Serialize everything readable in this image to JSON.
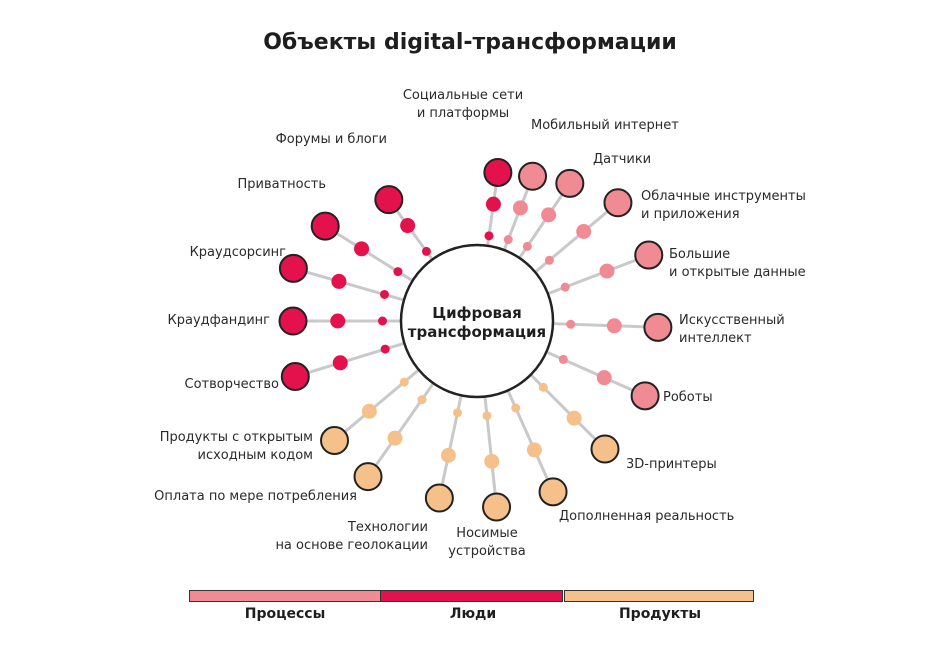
{
  "title": "Объекты digital-трансформации",
  "center_label": [
    "Цифровая",
    "трансформация"
  ],
  "colors": {
    "processes": "#f08a93",
    "people": "#e3124d",
    "products": "#f6c08a",
    "line": "#c9c9c9",
    "stroke": "#222222"
  },
  "nodes": [
    {
      "label": [
        "Социальные сети",
        "и платформы"
      ],
      "category": "people"
    },
    {
      "label": [
        "Мобильный интернет"
      ],
      "category": "processes"
    },
    {
      "label": [
        "Датчики"
      ],
      "category": "processes"
    },
    {
      "label": [
        "Облачные инструменты",
        "и приложения"
      ],
      "category": "processes"
    },
    {
      "label": [
        "Большие",
        "и открытые данные"
      ],
      "category": "processes"
    },
    {
      "label": [
        "Искусственный",
        "интеллект"
      ],
      "category": "processes"
    },
    {
      "label": [
        "Роботы"
      ],
      "category": "processes"
    },
    {
      "label": [
        "3D-принтеры"
      ],
      "category": "products"
    },
    {
      "label": [
        "Дополненная реальность"
      ],
      "category": "products"
    },
    {
      "label": [
        "Носимые",
        "устройства"
      ],
      "category": "products"
    },
    {
      "label": [
        "Технологии",
        "на основе геолокации"
      ],
      "category": "products"
    },
    {
      "label": [
        "Оплата по мере потребления"
      ],
      "category": "products"
    },
    {
      "label": [
        "Продукты с открытым",
        "исходным кодом"
      ],
      "category": "products"
    },
    {
      "label": [
        "Сотворчество"
      ],
      "category": "people"
    },
    {
      "label": [
        "Краудфандинг"
      ],
      "category": "people"
    },
    {
      "label": [
        "Краудсорсинг"
      ],
      "category": "people"
    },
    {
      "label": [
        "Приватность"
      ],
      "category": "people"
    },
    {
      "label": [
        "Форумы и блоги"
      ],
      "category": "people"
    }
  ],
  "legend": [
    {
      "label": "Процессы",
      "category": "processes"
    },
    {
      "label": "Люди",
      "category": "people"
    },
    {
      "label": "Продукты",
      "category": "products"
    }
  ]
}
